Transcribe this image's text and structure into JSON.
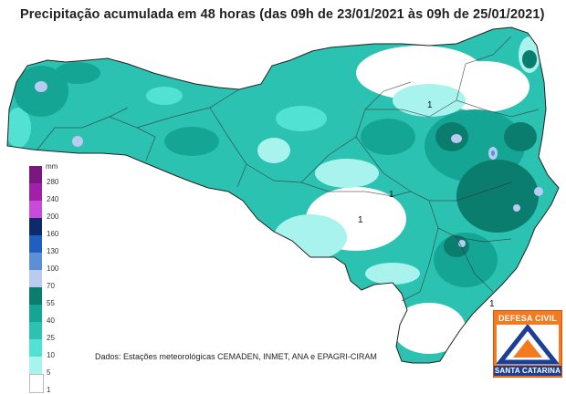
{
  "title": "Precipitação acumulada em 48 horas (das 09h de 23/01/2021 às 09h de 25/01/2021)",
  "legend": {
    "unit": "mm",
    "classes": [
      {
        "label": "280",
        "color": "#7a1880"
      },
      {
        "label": "240",
        "color": "#a020a8"
      },
      {
        "label": "200",
        "color": "#c84bd8"
      },
      {
        "label": "160",
        "color": "#0c2a6c"
      },
      {
        "label": "130",
        "color": "#1f5fbf"
      },
      {
        "label": "100",
        "color": "#5b8fd6"
      },
      {
        "label": "70",
        "color": "#b9cbf0"
      },
      {
        "label": "55",
        "color": "#0b7d6e"
      },
      {
        "label": "40",
        "color": "#14a595"
      },
      {
        "label": "25",
        "color": "#2cc2b2"
      },
      {
        "label": "10",
        "color": "#52e2d4"
      },
      {
        "label": "5",
        "color": "#a9f3ee"
      },
      {
        "label": "1",
        "color": "#ffffff"
      }
    ]
  },
  "map_labels": [
    "1",
    "1",
    "1",
    "1"
  ],
  "source": "Dados: Estações meteorológicas CEMADEN, INMET, ANA e EPAGRI-CIRAM",
  "logo": {
    "top": "DEFESA CIVIL",
    "bottom": "SANTA CATARINA"
  }
}
